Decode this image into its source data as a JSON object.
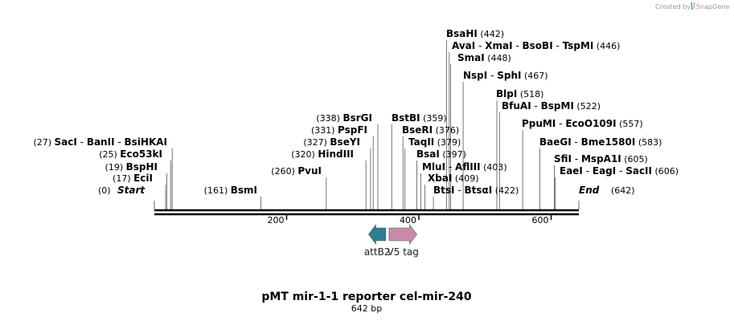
{
  "credit": {
    "prefix": "Created by",
    "brand": "SnapGene"
  },
  "map": {
    "title": "pMT mir-1-1 reporter cel-mir-240",
    "length_label": "642 bp",
    "length_bp": 642,
    "start_label": "Start",
    "start_pos": "(0)",
    "end_label": "End",
    "end_pos": "(642)"
  },
  "ticks": [
    {
      "bp": 200,
      "label": "200"
    },
    {
      "bp": 400,
      "label": "400"
    },
    {
      "bp": 600,
      "label": "600"
    }
  ],
  "sites": [
    {
      "bp": 161,
      "pos": "(161)",
      "names": [
        "BsmI"
      ]
    },
    {
      "bp": 17,
      "pos": "(17)",
      "names": [
        "EciI"
      ]
    },
    {
      "bp": 19,
      "pos": "(19)",
      "names": [
        "BspHI"
      ]
    },
    {
      "bp": 25,
      "pos": "(25)",
      "names": [
        "Eco53kI"
      ]
    },
    {
      "bp": 27,
      "pos": "(27)",
      "names": [
        "SacI",
        "BanII",
        "BsiHKAI"
      ]
    },
    {
      "bp": 260,
      "pos": "(260)",
      "names": [
        "PvuI"
      ]
    },
    {
      "bp": 320,
      "pos": "(320)",
      "names": [
        "HindIII"
      ]
    },
    {
      "bp": 327,
      "pos": "(327)",
      "names": [
        "BseYI"
      ]
    },
    {
      "bp": 331,
      "pos": "(331)",
      "names": [
        "PspFI"
      ]
    },
    {
      "bp": 338,
      "pos": "(338)",
      "names": [
        "BsrGI"
      ]
    },
    {
      "bp": 359,
      "pos": "(359)",
      "names": [
        "BstBI"
      ]
    },
    {
      "bp": 376,
      "pos": "(376)",
      "names": [
        "BseRI"
      ]
    },
    {
      "bp": 379,
      "pos": "(379)",
      "names": [
        "TaqII"
      ]
    },
    {
      "bp": 397,
      "pos": "(397)",
      "names": [
        "BsaI"
      ]
    },
    {
      "bp": 403,
      "pos": "(403)",
      "names": [
        "MluI",
        "AflIII"
      ]
    },
    {
      "bp": 409,
      "pos": "(409)",
      "names": [
        "XbaI"
      ]
    },
    {
      "bp": 422,
      "pos": "(422)",
      "names": [
        "BtsI",
        "BtsαI"
      ]
    },
    {
      "bp": 442,
      "pos": "(442)",
      "names": [
        "BsaHI"
      ]
    },
    {
      "bp": 446,
      "pos": "(446)",
      "names": [
        "AvaI",
        "XmaI",
        "BsoBI",
        "TspMI"
      ]
    },
    {
      "bp": 448,
      "pos": "(448)",
      "names": [
        "SmaI"
      ]
    },
    {
      "bp": 467,
      "pos": "(467)",
      "names": [
        "NspI",
        "SphI"
      ]
    },
    {
      "bp": 518,
      "pos": "(518)",
      "names": [
        "BlpI"
      ]
    },
    {
      "bp": 522,
      "pos": "(522)",
      "names": [
        "BfuAI",
        "BspMI"
      ]
    },
    {
      "bp": 557,
      "pos": "(557)",
      "names": [
        "PpuMI",
        "EcoO109I"
      ]
    },
    {
      "bp": 583,
      "pos": "(583)",
      "names": [
        "BaeGI",
        "Bme1580I"
      ]
    },
    {
      "bp": 605,
      "pos": "(605)",
      "names": [
        "SfiI",
        "MspA1I"
      ]
    },
    {
      "bp": 606,
      "pos": "(606)",
      "names": [
        "EaeI",
        "EagI",
        "SacII"
      ]
    }
  ],
  "features": [
    {
      "name": "attB2",
      "direction": "reverse",
      "color": "#2e7d93",
      "start_bp": 324,
      "end_bp": 350
    },
    {
      "name": "V5 tag",
      "direction": "forward",
      "color": "#c98aa9",
      "start_bp": 355,
      "end_bp": 397
    }
  ],
  "colors": {
    "backbone": "#000000",
    "site_line": "#555555"
  }
}
